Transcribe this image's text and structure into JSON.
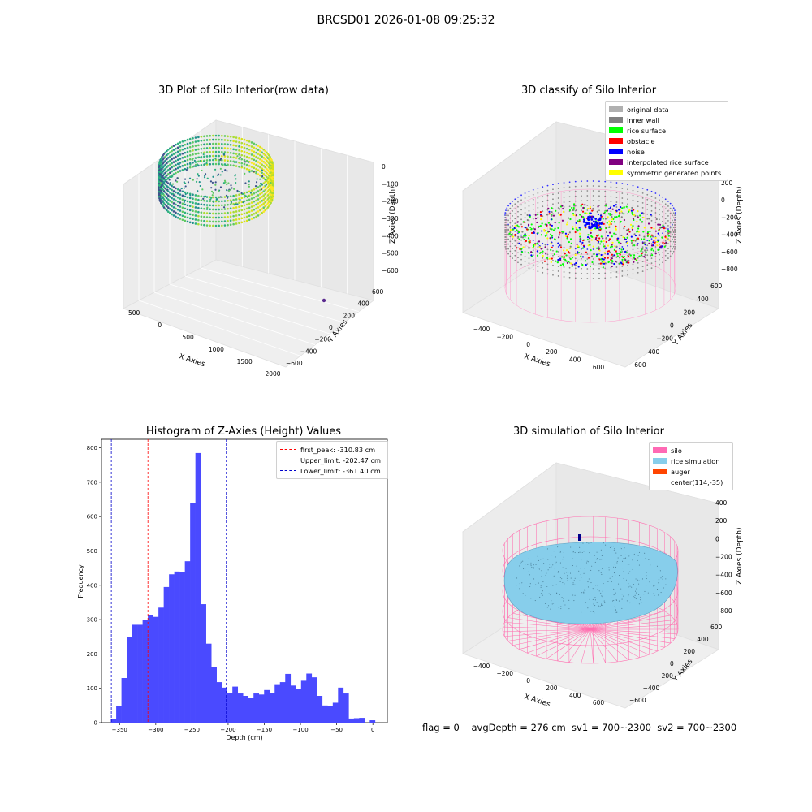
{
  "suptitle": "BRCSD01 2026-01-08 09:25:32",
  "footer": "flag = 0    avgDepth = 276 cm  sv1 = 700~2300  sv2 = 700~2300",
  "colors": {
    "hist_bar": "#4a4aff",
    "first_peak": "#ff0000",
    "limits": "#0000cc",
    "silo_pink": "#ff69b4",
    "rice_sim": "#87ceeb",
    "auger": "#ff4500"
  },
  "chart_data": [
    {
      "type": "scatter",
      "subtype": "3d",
      "title": "3D Plot of Silo Interior(row data)",
      "xlabel": "X Axies",
      "ylabel": "Y Axies",
      "zlabel": "Z Axies (Depth)",
      "xticks": [
        "−500",
        "0",
        "500",
        "1000",
        "1500",
        "2000"
      ],
      "yticks": [
        "−600",
        "−400",
        "−200",
        "0",
        "200",
        "400",
        "600"
      ],
      "zticks": [
        "0",
        "−100",
        "−200",
        "−300",
        "−400",
        "−500",
        "−600"
      ],
      "colormap": "viridis"
    },
    {
      "type": "scatter",
      "subtype": "3d",
      "title": "3D classify of Silo Interior",
      "xlabel": "X Axies",
      "ylabel": "Y Axies",
      "zlabel": "Z Axies (Depth)",
      "xticks": [
        "−400",
        "−200",
        "0",
        "200",
        "400",
        "600"
      ],
      "yticks": [
        "−600",
        "−400",
        "−200",
        "0",
        "200",
        "400",
        "600"
      ],
      "zticks": [
        "200",
        "0",
        "−200",
        "−400",
        "−600",
        "−800"
      ],
      "legend": [
        {
          "label": "original data",
          "color": "#b0b0b0"
        },
        {
          "label": "inner wall",
          "color": "#808080"
        },
        {
          "label": "rice surface",
          "color": "#00ff00"
        },
        {
          "label": "obstacle",
          "color": "#ff0000"
        },
        {
          "label": "noise",
          "color": "#0000ff"
        },
        {
          "label": "interpolated rice surface",
          "color": "#800080"
        },
        {
          "label": "symmetric generated points",
          "color": "#ffff00"
        }
      ],
      "legend_position": "top-right"
    },
    {
      "type": "bar",
      "subtype": "histogram",
      "title": "Histogram of Z-Axies (Height) Values",
      "xlabel": "Depth (cm)",
      "ylabel": "Frequency",
      "xlim": [
        -375,
        20
      ],
      "ylim": [
        0,
        825
      ],
      "xticks": [
        -350,
        -300,
        -250,
        -200,
        -150,
        -100,
        -50,
        0
      ],
      "yticks": [
        0,
        100,
        200,
        300,
        400,
        500,
        600,
        700,
        800
      ],
      "bin_start": -362,
      "bin_width": 7.3,
      "values": [
        10,
        48,
        130,
        250,
        285,
        285,
        298,
        312,
        308,
        335,
        395,
        432,
        440,
        438,
        470,
        640,
        785,
        345,
        230,
        162,
        118,
        102,
        86,
        105,
        85,
        78,
        72,
        85,
        82,
        95,
        87,
        112,
        118,
        142,
        108,
        98,
        122,
        143,
        132,
        78,
        50,
        48,
        58,
        102,
        85,
        12,
        13,
        14,
        0,
        7
      ],
      "vlines": [
        {
          "label": "first_peak: -310.83 cm",
          "x": -310.83,
          "color": "#ff0000"
        },
        {
          "label": "Upper_limit: -202.47 cm",
          "x": -202.47,
          "color": "#0000cc"
        },
        {
          "label": "Lower_limit: -361.40 cm",
          "x": -361.4,
          "color": "#0000cc"
        }
      ],
      "legend_position": "top-right"
    },
    {
      "type": "scatter",
      "subtype": "3d",
      "title": "3D simulation of Silo Interior",
      "xlabel": "X Axies",
      "ylabel": "Y Axies",
      "zlabel": "Z Axies (Depth)",
      "xticks": [
        "−400",
        "−200",
        "0",
        "200",
        "400",
        "600"
      ],
      "yticks": [
        "−600",
        "−400",
        "−200",
        "0",
        "200",
        "400",
        "600"
      ],
      "zticks": [
        "400",
        "200",
        "0",
        "−200",
        "−400",
        "−600",
        "−800"
      ],
      "legend": [
        {
          "label": "silo",
          "color": "#ff69b4"
        },
        {
          "label": "rice simulation",
          "color": "#87ceeb"
        },
        {
          "label": "auger",
          "color": "#ff4500"
        },
        {
          "label": "center(114,-35)",
          "color": ""
        }
      ],
      "legend_position": "top-right"
    }
  ]
}
